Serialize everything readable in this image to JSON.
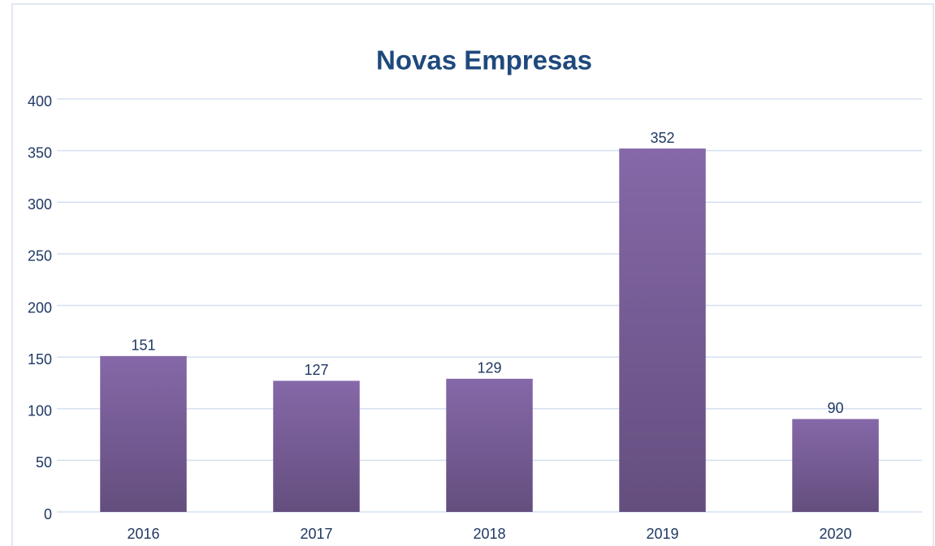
{
  "chart_data": {
    "type": "bar",
    "title": "Novas Empresas",
    "categories": [
      "2016",
      "2017",
      "2018",
      "2019",
      "2020"
    ],
    "values": [
      151,
      127,
      129,
      352,
      90
    ],
    "color": "#8064a2",
    "ylim": [
      0,
      400
    ],
    "yticks": [
      0,
      50,
      100,
      150,
      200,
      250,
      300,
      350,
      400
    ],
    "grid": true
  }
}
